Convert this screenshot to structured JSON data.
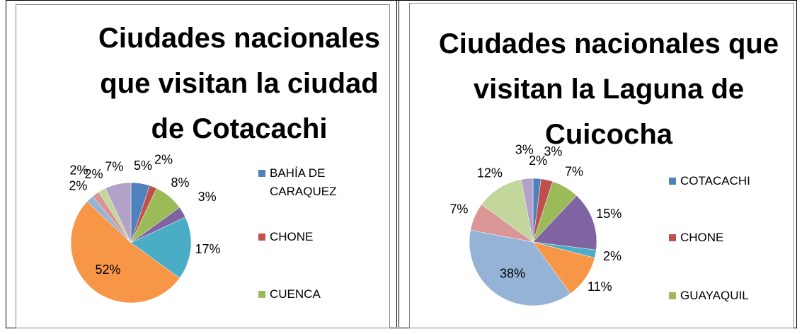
{
  "chart_data": [
    {
      "type": "pie",
      "title": "Ciudades nacionales que visitan la ciudad de Cotacachi",
      "categories": [
        "BAHÍA DE CARAQUEZ",
        "CHONE",
        "CUENCA",
        null,
        null,
        null,
        null,
        null,
        null,
        null
      ],
      "values": [
        5,
        2,
        8,
        3,
        17,
        52,
        2,
        2,
        2,
        7
      ],
      "value_labels": [
        "5%",
        "2%",
        "8%",
        "3%",
        "17%",
        "52%",
        "2%",
        "2%",
        "2%",
        "7%"
      ],
      "colors": [
        "#4F81BD",
        "#C0504D",
        "#9BBB59",
        "#8064A2",
        "#4BACC6",
        "#F79646",
        "#95B3D7",
        "#D99694",
        "#C3D69B",
        "#B3A2C7"
      ]
    },
    {
      "type": "pie",
      "title": "Ciudades nacionales que visitan la Laguna de Cuicocha",
      "categories": [
        "COTACACHI",
        "CHONE",
        "GUAYAQUIL",
        null,
        null,
        null,
        null,
        null,
        null,
        null
      ],
      "values": [
        2,
        3,
        7,
        15,
        2,
        11,
        38,
        7,
        12,
        3
      ],
      "value_labels": [
        "2%",
        "3%",
        "7%",
        "15%",
        "2%",
        "11%",
        "38%",
        "7%",
        "12%",
        "3%"
      ],
      "colors": [
        "#4F81BD",
        "#C0504D",
        "#9BBB59",
        "#8064A2",
        "#4BACC6",
        "#F79646",
        "#95B3D7",
        "#D99694",
        "#C3D69B",
        "#B3A2C7"
      ]
    }
  ]
}
